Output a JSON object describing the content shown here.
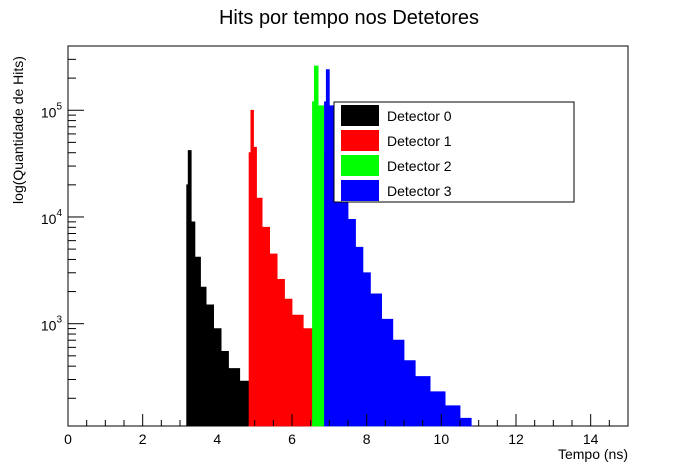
{
  "chart_data": {
    "type": "histogram",
    "title": "Hits por tempo nos Detetores",
    "xlabel": "Tempo (ns)",
    "ylabel": "log(Quantidade de Hits)",
    "xlim": [
      0,
      15
    ],
    "ylim": [
      110,
      400000
    ],
    "yscale": "log",
    "x_ticks": [
      0,
      2,
      4,
      6,
      8,
      10,
      12,
      14
    ],
    "x_tick_labels": [
      "0",
      "2",
      "4",
      "6",
      "8",
      "10",
      "12",
      "14"
    ],
    "y_ticks": [
      {
        "value": 1000,
        "base": "10",
        "exp": "3"
      },
      {
        "value": 10000,
        "base": "10",
        "exp": "4"
      },
      {
        "value": 100000,
        "base": "10",
        "exp": "5"
      }
    ],
    "legend_position": "top-center",
    "series": [
      {
        "name": "Detector 0",
        "color": "#000000",
        "points": [
          [
            3.17,
            110
          ],
          [
            3.18,
            20000
          ],
          [
            3.22,
            42000
          ],
          [
            3.3,
            9000
          ],
          [
            3.4,
            4200
          ],
          [
            3.55,
            2200
          ],
          [
            3.7,
            1500
          ],
          [
            3.9,
            900
          ],
          [
            4.1,
            550
          ],
          [
            4.3,
            380
          ],
          [
            4.6,
            290
          ],
          [
            5.0,
            250
          ],
          [
            5.4,
            220
          ],
          [
            5.7,
            190
          ],
          [
            5.9,
            150
          ],
          [
            6.0,
            130
          ]
        ]
      },
      {
        "name": "Detector 1",
        "color": "#ff0000",
        "points": [
          [
            4.83,
            110
          ],
          [
            4.85,
            40000
          ],
          [
            4.9,
            100000
          ],
          [
            4.97,
            45000
          ],
          [
            5.05,
            15000
          ],
          [
            5.2,
            8000
          ],
          [
            5.4,
            4500
          ],
          [
            5.6,
            2600
          ],
          [
            5.8,
            1700
          ],
          [
            6.0,
            1200
          ],
          [
            6.3,
            900
          ],
          [
            6.6,
            780
          ],
          [
            7.0,
            650
          ],
          [
            7.3,
            520
          ],
          [
            7.6,
            400
          ],
          [
            7.9,
            300
          ],
          [
            8.2,
            220
          ],
          [
            8.4,
            160
          ],
          [
            8.6,
            130
          ],
          [
            8.7,
            115
          ]
        ]
      },
      {
        "name": "Detector 2",
        "color": "#00ff00",
        "points": [
          [
            6.52,
            110
          ],
          [
            6.55,
            120000
          ],
          [
            6.6,
            260000
          ],
          [
            6.7,
            110000
          ],
          [
            6.85,
            40000
          ],
          [
            7.0,
            18000
          ],
          [
            7.2,
            8500
          ],
          [
            7.4,
            4200
          ],
          [
            7.6,
            2300
          ],
          [
            7.8,
            1400
          ],
          [
            8.0,
            900
          ],
          [
            8.3,
            600
          ],
          [
            8.6,
            400
          ],
          [
            8.9,
            270
          ],
          [
            9.2,
            200
          ],
          [
            9.6,
            150
          ],
          [
            10.0,
            120
          ],
          [
            10.3,
            110
          ]
        ]
      },
      {
        "name": "Detector 3",
        "color": "#0000ff",
        "points": [
          [
            6.85,
            110
          ],
          [
            6.87,
            120000
          ],
          [
            6.92,
            240000
          ],
          [
            7.0,
            110000
          ],
          [
            7.15,
            45000
          ],
          [
            7.3,
            20000
          ],
          [
            7.5,
            9500
          ],
          [
            7.7,
            5200
          ],
          [
            7.9,
            3000
          ],
          [
            8.1,
            1900
          ],
          [
            8.4,
            1100
          ],
          [
            8.7,
            700
          ],
          [
            9.0,
            450
          ],
          [
            9.3,
            320
          ],
          [
            9.7,
            230
          ],
          [
            10.1,
            170
          ],
          [
            10.5,
            130
          ],
          [
            10.8,
            110
          ]
        ]
      }
    ]
  }
}
